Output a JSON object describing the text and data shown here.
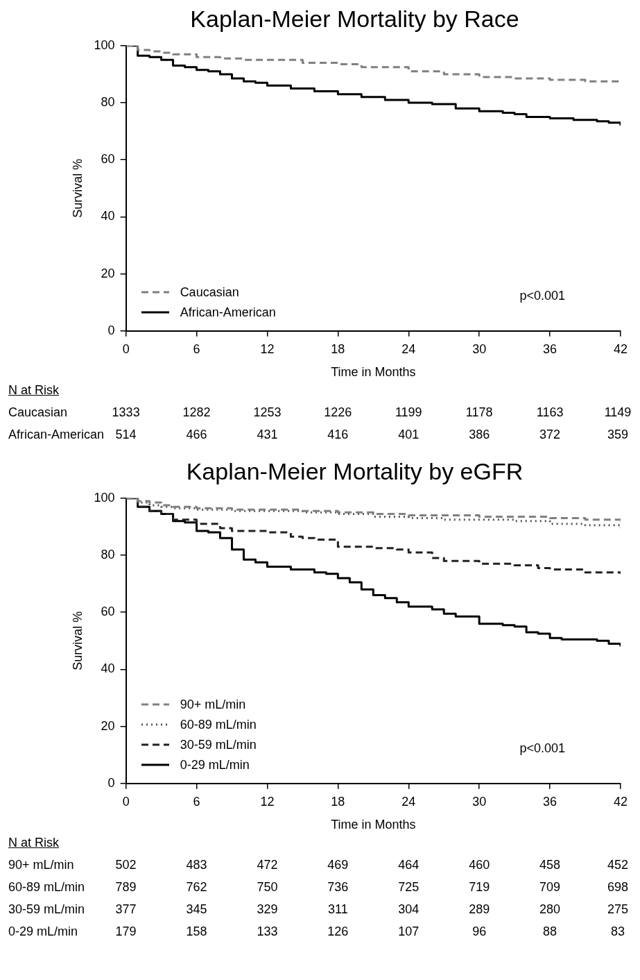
{
  "chart_data": [
    {
      "type": "step",
      "title": "Kaplan-Meier Mortality by Race",
      "xlabel": "Time in Months",
      "ylabel": "Survival %",
      "xlim": [
        0,
        42
      ],
      "xticks": [
        0,
        6,
        12,
        18,
        24,
        30,
        36,
        42
      ],
      "ylim": [
        0,
        100
      ],
      "yticks": [
        0,
        20,
        40,
        60,
        80,
        100
      ],
      "grid": false,
      "legend": "bottom left",
      "marker": "none",
      "series": [
        {
          "name": "Caucasian",
          "color": "#808080",
          "line_style": "dashed",
          "x": [
            0,
            1,
            2,
            3,
            4,
            6,
            8,
            10,
            12,
            15,
            18,
            20,
            24,
            27,
            30,
            33,
            36,
            39,
            41,
            42
          ],
          "values": [
            100,
            98.5,
            98,
            97.5,
            97,
            96,
            95.5,
            95,
            95,
            94,
            93.5,
            92.5,
            91,
            90,
            89,
            88.5,
            88,
            87.5,
            87.5,
            87
          ]
        },
        {
          "name": "African-American",
          "color": "#000000",
          "line_style": "solid",
          "x": [
            0,
            1,
            2,
            3,
            4,
            5,
            6,
            7,
            8,
            9,
            10,
            11,
            12,
            14,
            16,
            18,
            20,
            22,
            24,
            26,
            28,
            30,
            32,
            33,
            34,
            36,
            38,
            40,
            41,
            42
          ],
          "values": [
            100,
            96.5,
            96,
            95,
            93,
            92.5,
            91.5,
            91,
            90,
            88.5,
            87.5,
            87,
            86,
            85,
            84,
            83,
            82,
            81,
            80,
            79.5,
            78,
            77,
            76.5,
            76,
            75,
            74.5,
            74,
            73.5,
            73,
            72
          ]
        }
      ],
      "annotations": [
        "p<0.001",
        "N at Risk",
        "Caucasian\t1333\t1282\t1253\t1226\t1199\t1178\t1163\t1149",
        "African-American\t514\t466\t431\t416\t401\t386\t372\t359"
      ]
    },
    {
      "type": "step",
      "title": "Kaplan-Meier Mortality by eGFR",
      "xlabel": "Time in Months",
      "ylabel": "Survival %",
      "xlim": [
        0,
        42
      ],
      "xticks": [
        0,
        6,
        12,
        18,
        24,
        30,
        36,
        42
      ],
      "ylim": [
        0,
        100
      ],
      "yticks": [
        0,
        20,
        40,
        60,
        80,
        100
      ],
      "grid": false,
      "legend": "bottom left",
      "marker": "none",
      "series": [
        {
          "name": "90+ mL/min",
          "color": "#808080",
          "line_style": "dashed",
          "x": [
            0,
            1,
            2,
            3,
            4,
            6,
            9,
            12,
            15,
            18,
            21,
            24,
            27,
            30,
            33,
            36,
            39,
            42
          ],
          "values": [
            100,
            99,
            98.5,
            97.5,
            97,
            96.5,
            96,
            96,
            95.5,
            95,
            94.5,
            94,
            94,
            93.5,
            93.5,
            93,
            92.5,
            92
          ]
        },
        {
          "name": "60-89 mL/min",
          "color": "#555555",
          "line_style": "dotted",
          "x": [
            0,
            1,
            2,
            3,
            4,
            6,
            9,
            12,
            15,
            18,
            21,
            24,
            27,
            30,
            33,
            36,
            39,
            42
          ],
          "values": [
            100,
            98.5,
            97.5,
            97,
            96.5,
            96,
            95.5,
            95.5,
            95,
            94.5,
            93.5,
            93,
            92.5,
            92.5,
            92,
            91,
            90.5,
            89.5
          ]
        },
        {
          "name": "30-59 mL/min",
          "color": "#222222",
          "line_style": "dashed",
          "x": [
            0,
            1,
            2,
            3,
            4,
            6,
            8,
            9,
            12,
            14,
            15,
            16,
            18,
            21,
            23,
            24,
            26,
            27,
            30,
            33,
            35,
            36,
            39,
            42
          ],
          "values": [
            100,
            97,
            95.5,
            94.5,
            92.5,
            91,
            89.5,
            88.5,
            88,
            86.5,
            86,
            85.5,
            83,
            82.5,
            82,
            81,
            79,
            78,
            77,
            76.5,
            75.5,
            75,
            74,
            73.5
          ]
        },
        {
          "name": "0-29 mL/min",
          "color": "#000000",
          "line_style": "solid",
          "x": [
            0,
            1,
            2,
            3,
            4,
            5,
            6,
            7,
            8,
            9,
            10,
            11,
            12,
            14,
            16,
            17,
            18,
            19,
            20,
            21,
            22,
            23,
            24,
            26,
            27,
            28,
            30,
            32,
            33,
            34,
            35,
            36,
            37,
            40,
            41,
            42
          ],
          "values": [
            100,
            97,
            95.5,
            94.5,
            92,
            91.5,
            88.5,
            88,
            86,
            82,
            78.5,
            77.5,
            76,
            75,
            74,
            73.5,
            72,
            70.5,
            68,
            66,
            65,
            63.5,
            62,
            61,
            59.5,
            58.5,
            56,
            55.5,
            55,
            53,
            52.5,
            51,
            50.5,
            50,
            49,
            48
          ]
        }
      ],
      "annotations": [
        "p<0.001",
        "N at Risk",
        "90+ mL/min\t502\t483\t472\t469\t464\t460\t458\t452",
        "60-89 mL/min\t789\t762\t750\t736\t725\t719\t709\t698",
        "30-59 mL/min\t377\t345\t329\t311\t304\t289\t280\t275",
        "0-29 mL/min\t179\t158\t133\t126\t107\t96\t88\t83"
      ]
    }
  ]
}
